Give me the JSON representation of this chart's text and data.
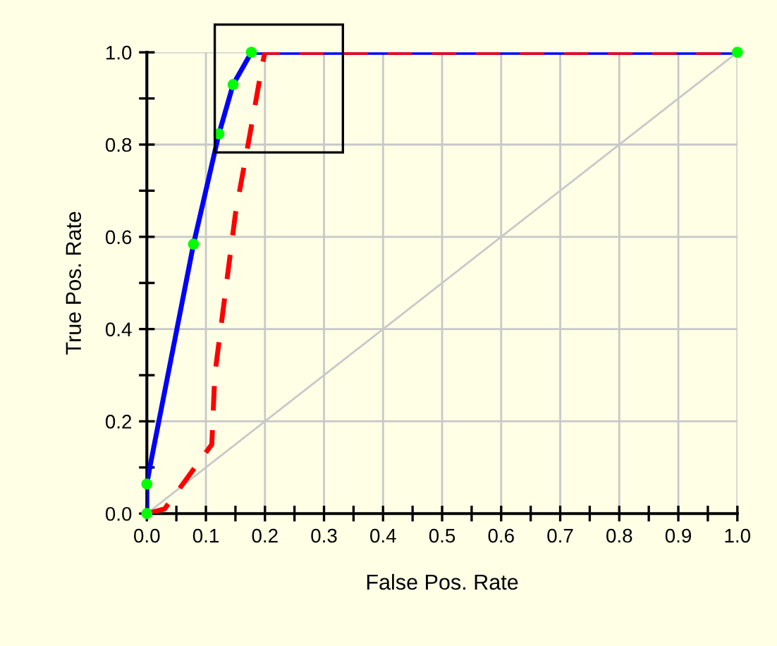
{
  "chart_data": {
    "type": "line",
    "xlabel": "False Pos. Rate",
    "ylabel": "True Pos. Rate",
    "xlim": [
      0,
      1
    ],
    "ylim": [
      0,
      1
    ],
    "xticks": [
      {
        "value": 0.0,
        "label": "0.0"
      },
      {
        "value": 0.1,
        "label": "0.1"
      },
      {
        "value": 0.2,
        "label": "0.2"
      },
      {
        "value": 0.3,
        "label": "0.3"
      },
      {
        "value": 0.4,
        "label": "0.4"
      },
      {
        "value": 0.5,
        "label": "0.5"
      },
      {
        "value": 0.6,
        "label": "0.6"
      },
      {
        "value": 0.7,
        "label": "0.7"
      },
      {
        "value": 0.8,
        "label": "0.8"
      },
      {
        "value": 0.9,
        "label": "0.9"
      },
      {
        "value": 1.0,
        "label": "1.0"
      }
    ],
    "yticks": [
      {
        "value": 0.0,
        "label": "0.0"
      },
      {
        "value": 0.2,
        "label": "0.2"
      },
      {
        "value": 0.4,
        "label": "0.4"
      },
      {
        "value": 0.6,
        "label": "0.6"
      },
      {
        "value": 0.8,
        "label": "0.8"
      },
      {
        "value": 1.0,
        "label": "1.0"
      }
    ],
    "grid": true,
    "legend": false,
    "series": [
      {
        "type": "line",
        "color": "#c8c8c8",
        "x": [
          0,
          1
        ],
        "values": [
          0,
          1
        ]
      },
      {
        "type": "line",
        "color": "#0000ff",
        "line_style": "solid",
        "x": [
          0,
          0,
          0.005,
          0.079,
          0.122,
          0.146,
          0.177,
          1
        ],
        "values": [
          0,
          0.064,
          0.1,
          0.584,
          0.823,
          0.93,
          1,
          1
        ]
      },
      {
        "type": "line",
        "color": "#ff0000",
        "line_style": "dashed",
        "x": [
          0,
          0.03,
          0.11,
          0.115,
          0.15,
          0.177,
          0.195,
          0.2,
          1
        ],
        "values": [
          0,
          0.01,
          0.15,
          0.3,
          0.65,
          0.84,
          0.97,
          1,
          1
        ]
      },
      {
        "type": "scatter",
        "color": "#00ff00",
        "marker": "circle",
        "x": [
          0,
          0,
          0.079,
          0.122,
          0.146,
          0.177,
          1
        ],
        "values": [
          0,
          0.064,
          0.584,
          0.823,
          0.93,
          1,
          1
        ]
      }
    ]
  }
}
